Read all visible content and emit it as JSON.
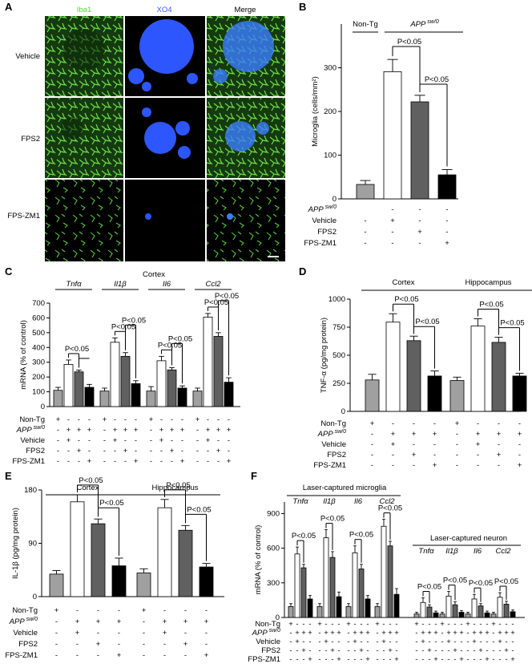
{
  "panel_labels": {
    "A": "A",
    "B": "B",
    "C": "C",
    "D": "D",
    "E": "E",
    "F": "F"
  },
  "panel_a": {
    "columns": [
      "Iba1",
      "XO4",
      "Merge"
    ],
    "column_colors": [
      "#5ad23a",
      "#2f63ff",
      "#ffffff"
    ],
    "rows": [
      "Vehicle",
      "FPS2",
      "FPS-ZM1"
    ]
  },
  "row_labels": {
    "nontg": "Non-Tg",
    "app": "APP",
    "app_sup": "sw/0",
    "vehicle": "Vehicle",
    "fps2": "FPS2",
    "fpszm1": "FPS-ZM1"
  },
  "chart_data": [
    {
      "id": "B",
      "type": "bar",
      "ylabel": "Microglia (cells/mm²)",
      "ylim": [
        0,
        400
      ],
      "yticks": [
        0,
        100,
        200,
        300
      ],
      "group_labels": [
        "Non-Tg",
        "APP sw/0"
      ],
      "categories": [
        "Non-Tg",
        "Vehicle",
        "FPS2",
        "FPS-ZM1"
      ],
      "values": [
        33,
        291,
        222,
        55
      ],
      "errors": [
        9,
        28,
        15,
        12
      ],
      "fills": [
        "#a0a0a0",
        "#ffffff",
        "#606060",
        "#000000"
      ],
      "significance": [
        "P<0.05",
        "P<0.05"
      ],
      "condition_rows": [
        [
          "",
          "-",
          "-",
          "-"
        ],
        [
          "-",
          "+",
          "-",
          "-"
        ],
        [
          "-",
          "-",
          "+",
          "-"
        ],
        [
          "-",
          "-",
          "-",
          "+"
        ]
      ]
    },
    {
      "id": "C",
      "type": "bar",
      "title": "Cortex",
      "ylabel": "mRNA (% of control)",
      "ylim": [
        0,
        700
      ],
      "yticks": [
        0,
        100,
        200,
        300,
        400,
        500,
        600,
        700
      ],
      "genes": [
        "Tnfα",
        "Il1β",
        "Il6",
        "Ccl2"
      ],
      "series": [
        {
          "name": "Non-Tg",
          "values": [
            110,
            105,
            105,
            105
          ],
          "errors": [
            20,
            20,
            30,
            20
          ]
        },
        {
          "name": "Vehicle",
          "values": [
            285,
            435,
            310,
            605
          ],
          "errors": [
            30,
            30,
            30,
            25
          ]
        },
        {
          "name": "FPS2",
          "values": [
            235,
            340,
            248,
            475
          ],
          "errors": [
            12,
            25,
            15,
            25
          ]
        },
        {
          "name": "FPS-ZM1",
          "values": [
            130,
            155,
            125,
            165
          ],
          "errors": [
            20,
            20,
            15,
            30
          ]
        }
      ],
      "fills": [
        "#a0a0a0",
        "#ffffff",
        "#606060",
        "#000000"
      ],
      "significance": [
        "P<0.05",
        "P<0.05",
        "P<0.05",
        "P<0.05",
        "P<0.05",
        "P<0.05",
        "P<0.05"
      ],
      "condition_rows": [
        [
          "+",
          "-",
          "-",
          "-",
          "+",
          "-",
          "-",
          "-",
          "+",
          "-",
          "-",
          "-",
          "+",
          "-",
          "-",
          "-"
        ],
        [
          "-",
          "+",
          "+",
          "+",
          "-",
          "+",
          "+",
          "+",
          "-",
          "+",
          "+",
          "+",
          "-",
          "+",
          "+",
          "+"
        ],
        [
          "-",
          "+",
          "-",
          "-",
          "-",
          "+",
          "-",
          "-",
          "-",
          "+",
          "-",
          "-",
          "-",
          "+",
          "-",
          "-"
        ],
        [
          "-",
          "-",
          "+",
          "-",
          "-",
          "-",
          "+",
          "-",
          "-",
          "-",
          "+",
          "-",
          "-",
          "-",
          "+",
          "-"
        ],
        [
          "-",
          "-",
          "-",
          "+",
          "-",
          "-",
          "-",
          "+",
          "-",
          "-",
          "-",
          "+",
          "-",
          "-",
          "-",
          "+"
        ]
      ]
    },
    {
      "id": "D",
      "type": "bar",
      "ylabel": "TNF-α (pg/mg protein)",
      "ylim": [
        0,
        1000
      ],
      "yticks": [
        0,
        250,
        500,
        750,
        1000
      ],
      "groups": [
        "Cortex",
        "Hippocampus"
      ],
      "series": [
        {
          "name": "Non-Tg",
          "values": [
            280,
            275
          ],
          "errors": [
            50,
            30
          ]
        },
        {
          "name": "Vehicle",
          "values": [
            795,
            760
          ],
          "errors": [
            75,
            65
          ]
        },
        {
          "name": "FPS2",
          "values": [
            630,
            615
          ],
          "errors": [
            40,
            45
          ]
        },
        {
          "name": "FPS-ZM1",
          "values": [
            315,
            315
          ],
          "errors": [
            45,
            25
          ]
        }
      ],
      "fills": [
        "#a0a0a0",
        "#ffffff",
        "#606060",
        "#000000"
      ],
      "significance": [
        "P<0.05",
        "P<0.05",
        "P<0.05",
        "P<0.05"
      ],
      "condition_rows": [
        [
          "+",
          "-",
          "-",
          "-",
          "+",
          "-",
          "-",
          "-"
        ],
        [
          "-",
          "+",
          "+",
          "+",
          "-",
          "+",
          "+",
          "+"
        ],
        [
          "-",
          "+",
          "-",
          "-",
          "-",
          "+",
          "-",
          "-"
        ],
        [
          "-",
          "-",
          "+",
          "-",
          "-",
          "-",
          "+",
          "-"
        ],
        [
          "-",
          "-",
          "-",
          "+",
          "-",
          "-",
          "-",
          "+"
        ]
      ]
    },
    {
      "id": "E",
      "type": "bar",
      "ylabel": "IL-1β (pg/mg protein)",
      "ylim": [
        0,
        180
      ],
      "yticks": [
        0,
        90,
        180
      ],
      "groups": [
        "Cortex",
        "Hippocampus"
      ],
      "series": [
        {
          "name": "Non-Tg",
          "values": [
            38,
            40
          ],
          "errors": [
            6,
            7
          ]
        },
        {
          "name": "Vehicle",
          "values": [
            160,
            150
          ],
          "errors": [
            12,
            14
          ]
        },
        {
          "name": "FPS2",
          "values": [
            123,
            112
          ],
          "errors": [
            8,
            8
          ]
        },
        {
          "name": "FPS-ZM1",
          "values": [
            52,
            50
          ],
          "errors": [
            13,
            6
          ]
        }
      ],
      "fills": [
        "#a0a0a0",
        "#ffffff",
        "#606060",
        "#000000"
      ],
      "significance": [
        "P<0.05",
        "P<0.05",
        "P<0.05",
        "P<0.05"
      ],
      "condition_rows": [
        [
          "+",
          "-",
          "-",
          "-",
          "+",
          "-",
          "-",
          "-"
        ],
        [
          "-",
          "+",
          "+",
          "+",
          "-",
          "+",
          "+",
          "+"
        ],
        [
          "-",
          "+",
          "-",
          "-",
          "-",
          "+",
          "-",
          "-"
        ],
        [
          "-",
          "-",
          "+",
          "-",
          "-",
          "-",
          "+",
          "-"
        ],
        [
          "-",
          "-",
          "-",
          "+",
          "-",
          "-",
          "-",
          "+"
        ]
      ]
    },
    {
      "id": "F",
      "type": "bar",
      "ylabel": "mRNA (% of control)",
      "ylim": [
        0,
        1000
      ],
      "yticks": [
        0,
        300,
        600,
        900
      ],
      "groups": [
        "Laser-captured microglia",
        "Laser-captured neuron"
      ],
      "genes": [
        "Tnfα",
        "Il1β",
        "Il6",
        "Ccl2"
      ],
      "series_microglia": [
        {
          "name": "Non-Tg",
          "values": [
            95,
            95,
            95,
            95
          ],
          "errors": [
            25,
            25,
            25,
            25
          ]
        },
        {
          "name": "Vehicle",
          "values": [
            550,
            690,
            560,
            790
          ],
          "errors": [
            60,
            70,
            60,
            60
          ]
        },
        {
          "name": "FPS2",
          "values": [
            430,
            520,
            420,
            620
          ],
          "errors": [
            30,
            50,
            40,
            40
          ]
        },
        {
          "name": "FPS-ZM1",
          "values": [
            160,
            180,
            160,
            200
          ],
          "errors": [
            30,
            40,
            30,
            50
          ]
        }
      ],
      "series_neuron": [
        {
          "name": "Non-Tg",
          "values": [
            30,
            30,
            30,
            30
          ],
          "errors": [
            15,
            15,
            15,
            15
          ]
        },
        {
          "name": "Vehicle",
          "values": [
            130,
            185,
            160,
            175
          ],
          "errors": [
            40,
            40,
            40,
            40
          ]
        },
        {
          "name": "FPS2",
          "values": [
            90,
            110,
            100,
            115
          ],
          "errors": [
            20,
            25,
            20,
            25
          ]
        },
        {
          "name": "FPS-ZM1",
          "values": [
            40,
            45,
            40,
            50
          ],
          "errors": [
            15,
            15,
            15,
            15
          ]
        }
      ],
      "fills": [
        "#a0a0a0",
        "#ffffff",
        "#606060",
        "#000000"
      ],
      "significance": [
        "P<0.05",
        "P<0.05",
        "P<0.05",
        "P<0.05",
        "P<0.05",
        "P<0.05",
        "P<0.05",
        "P<0.05"
      ],
      "condition_rows": [
        [
          "+",
          "-",
          "-",
          "-",
          "+",
          "-",
          "-",
          "-",
          "+",
          "-",
          "-",
          "-",
          "+",
          "-",
          "-",
          "-",
          "+",
          "-",
          "-",
          "-",
          "+",
          "-",
          "-",
          "-",
          "+",
          "-",
          "-",
          "-",
          "+",
          "-",
          "-",
          "-"
        ],
        [
          "-",
          "+",
          "+",
          "+",
          "-",
          "+",
          "+",
          "+",
          "-",
          "+",
          "+",
          "+",
          "-",
          "+",
          "+",
          "+",
          "-",
          "+",
          "+",
          "+",
          "-",
          "+",
          "+",
          "+",
          "-",
          "+",
          "+",
          "+",
          "-",
          "+",
          "+",
          "+"
        ],
        [
          "-",
          "+",
          "-",
          "-",
          "-",
          "+",
          "-",
          "-",
          "-",
          "+",
          "-",
          "-",
          "-",
          "+",
          "-",
          "-",
          "-",
          "+",
          "-",
          "-",
          "-",
          "+",
          "-",
          "-",
          "-",
          "+",
          "-",
          "-",
          "-",
          "+",
          "-",
          "-"
        ],
        [
          "-",
          "-",
          "+",
          "-",
          "-",
          "-",
          "+",
          "-",
          "-",
          "-",
          "+",
          "-",
          "-",
          "-",
          "+",
          "-",
          "-",
          "-",
          "+",
          "-",
          "-",
          "-",
          "+",
          "-",
          "-",
          "-",
          "+",
          "-",
          "-",
          "-",
          "+",
          "-"
        ],
        [
          "-",
          "-",
          "-",
          "+",
          "-",
          "-",
          "-",
          "+",
          "-",
          "-",
          "-",
          "+",
          "-",
          "-",
          "-",
          "+",
          "-",
          "-",
          "-",
          "+",
          "-",
          "-",
          "-",
          "+",
          "-",
          "-",
          "-",
          "+",
          "-",
          "-",
          "-",
          "+"
        ]
      ]
    }
  ]
}
